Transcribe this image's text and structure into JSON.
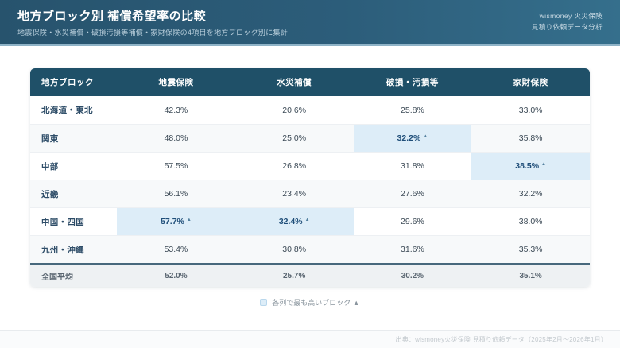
{
  "page": {
    "title": "地方ブロック別 補償希望率の比較",
    "subtitle": "地震保険・水災補償・破損汚損等補償・家財保険の4項目を地方ブロック別に集計",
    "brand_line1": "wismoney 火災保険",
    "brand_line2": "見積り依頼データ分析",
    "legend_label": "各列で最も高いブロック ▲",
    "source": "出典：wismoney火災保険 見積り依頼データ（2025年2月～2026年1月）"
  },
  "colors": {
    "band_gradient_start": "#27536d",
    "band_gradient_end": "#356f8c",
    "band_accent_line": "#8fb3c7",
    "table_header_bg": "#1f5068",
    "zebra_row_bg": "#f7f9fa",
    "highlight_cell_bg": "#ddedf8",
    "highlight_text": "#1f4e79",
    "footer_row_bg": "#eef1f3",
    "footer_row_border": "#47687c"
  },
  "chart_data": {
    "type": "table",
    "title": "地方ブロック別 補償希望率の比較",
    "unit": "%",
    "columns": [
      "地方ブロック",
      "地震保険",
      "水災補償",
      "破損・汚損等",
      "家財保険"
    ],
    "rows": [
      {
        "label": "北海道・東北",
        "values": [
          "42.3%",
          "20.6%",
          "25.8%",
          "33.0%"
        ],
        "highlight": []
      },
      {
        "label": "関東",
        "values": [
          "48.0%",
          "25.0%",
          "32.2%",
          "35.8%"
        ],
        "highlight": [
          2
        ]
      },
      {
        "label": "中部",
        "values": [
          "57.5%",
          "26.8%",
          "31.8%",
          "38.5%"
        ],
        "highlight": [
          3
        ]
      },
      {
        "label": "近畿",
        "values": [
          "56.1%",
          "23.4%",
          "27.6%",
          "32.2%"
        ],
        "highlight": []
      },
      {
        "label": "中国・四国",
        "values": [
          "57.7%",
          "32.4%",
          "29.6%",
          "38.0%"
        ],
        "highlight": [
          0,
          1
        ]
      },
      {
        "label": "九州・沖縄",
        "values": [
          "53.4%",
          "30.8%",
          "31.6%",
          "35.3%"
        ],
        "highlight": []
      }
    ],
    "footer_row": {
      "label": "全国平均",
      "values": [
        "52.0%",
        "25.7%",
        "30.2%",
        "35.1%"
      ]
    },
    "highlight_marker": "▲",
    "highlight_meaning": "各列で最も高いブロック"
  }
}
